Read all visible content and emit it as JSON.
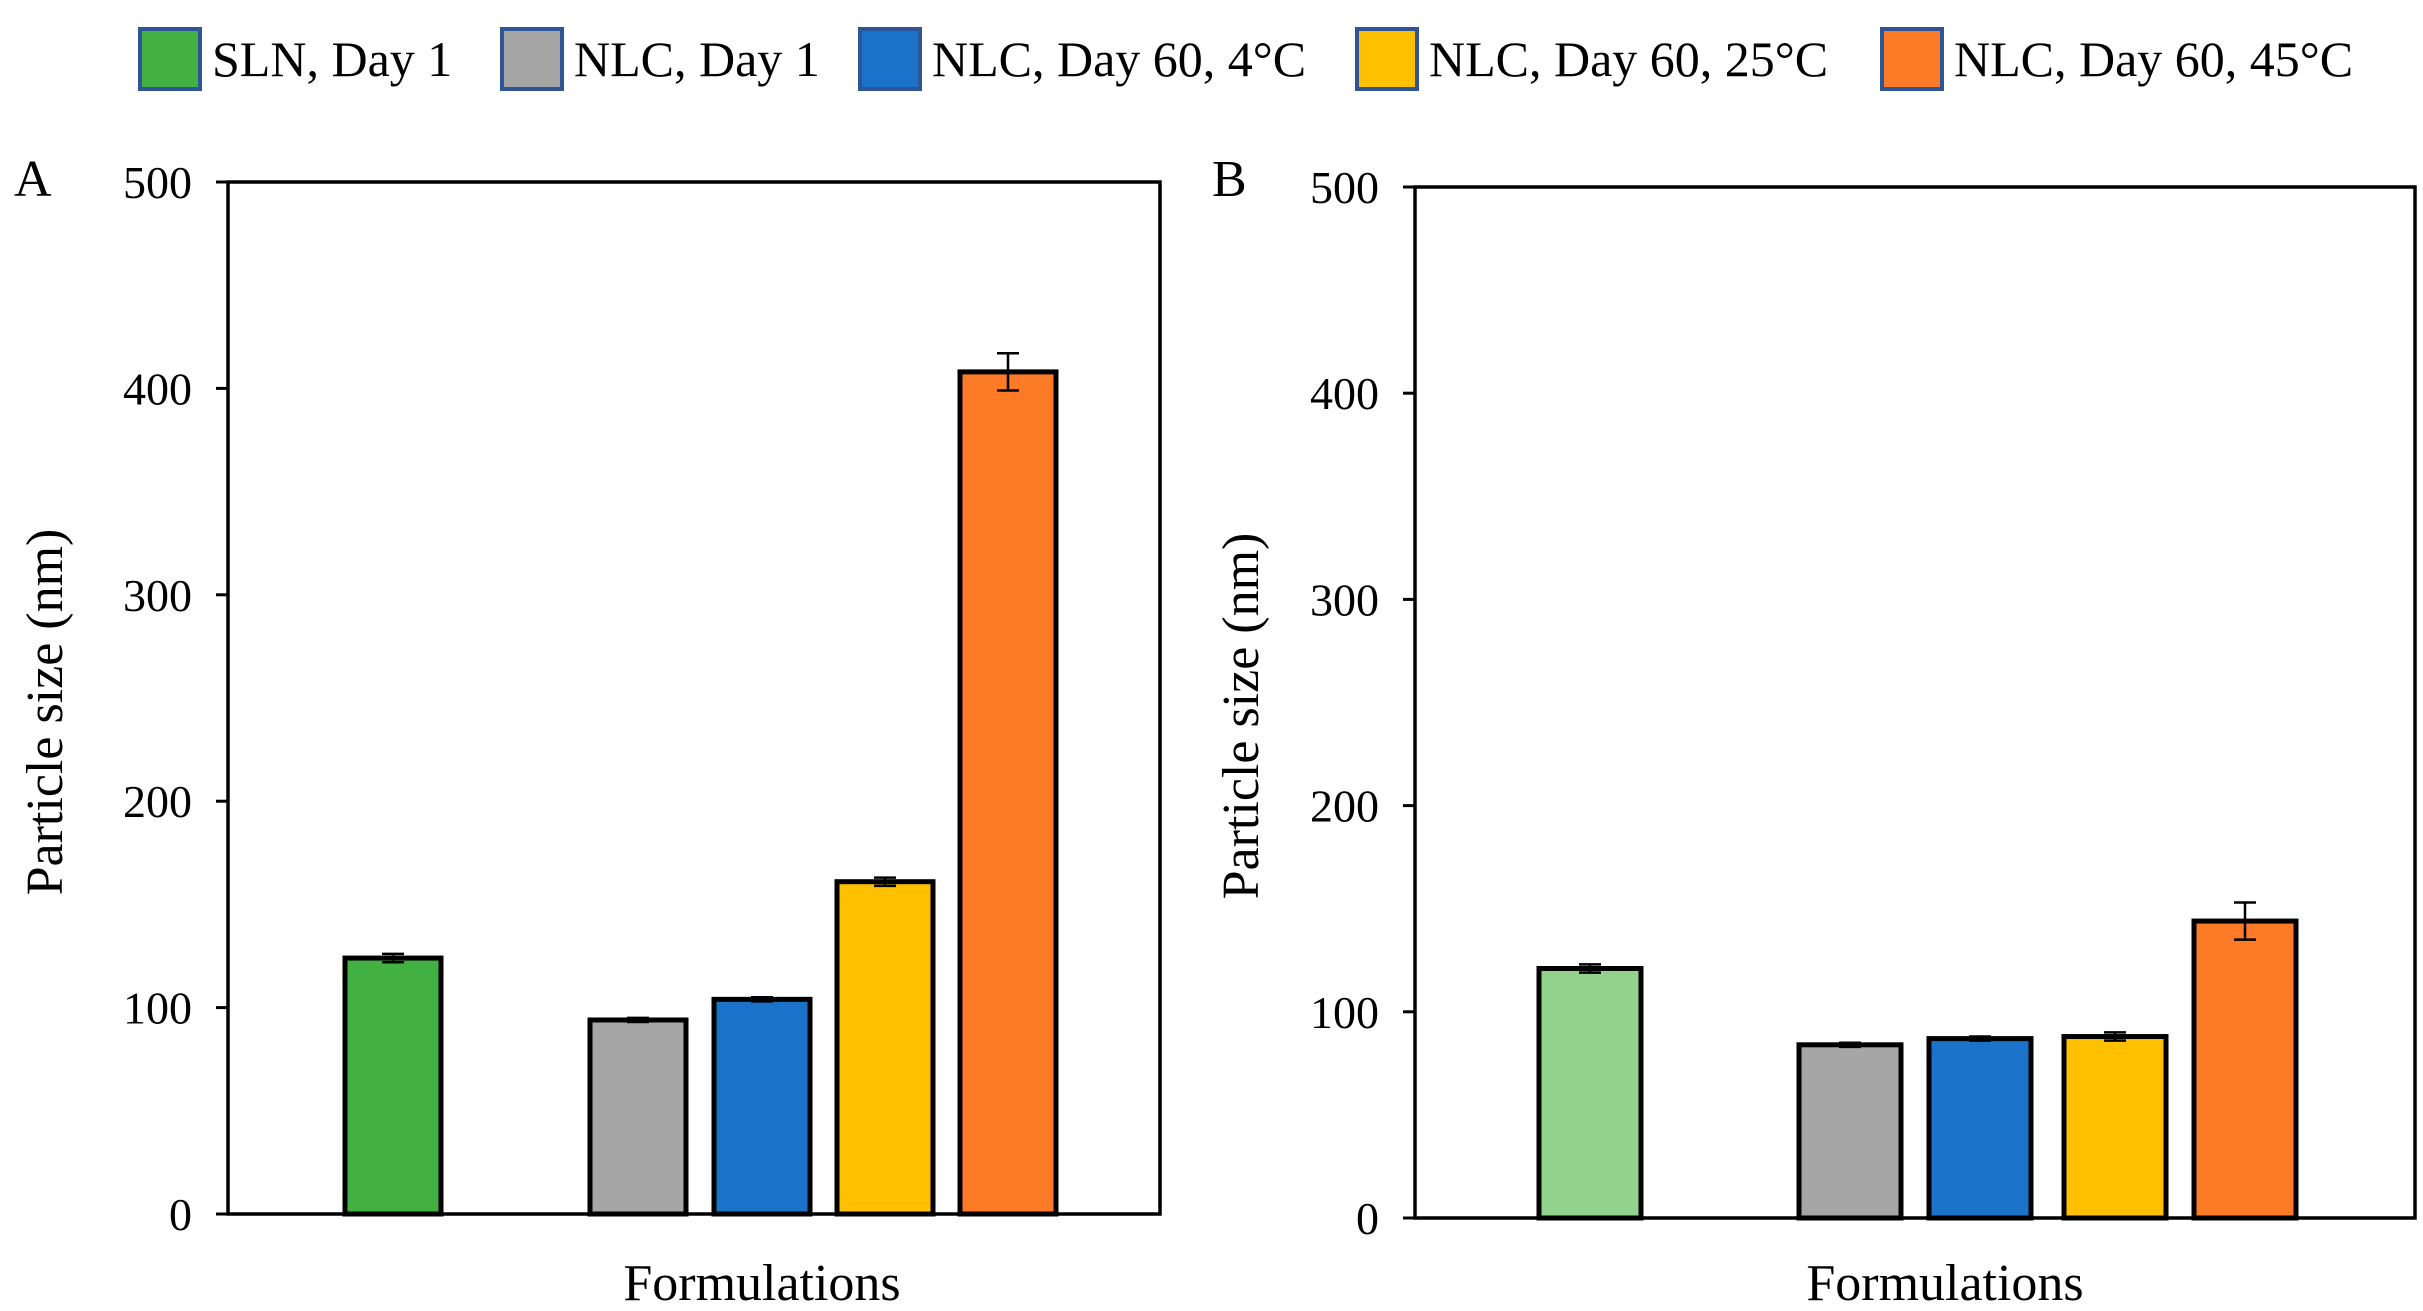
{
  "legend": [
    {
      "label": "SLN, Day 1",
      "color": "#43b043"
    },
    {
      "label": "NLC, Day 1",
      "color": "#a6a6a6"
    },
    {
      "label": "NLC, Day 60, 4°C",
      "color": "#1a73c8"
    },
    {
      "label": "NLC, Day 60, 25°C",
      "color": "#ffc000"
    },
    {
      "label": "NLC, Day 60, 45°C",
      "color": "#fd7b27"
    }
  ],
  "chart_data": [
    {
      "type": "bar",
      "panel": "A",
      "title": "",
      "xlabel": "Formulations",
      "ylabel": "Particle size (nm)",
      "ylim": [
        0,
        500
      ],
      "yticks": [
        "0",
        "100",
        "200",
        "300",
        "400",
        "500"
      ],
      "categories": [
        "SLN, Day 1",
        "NLC, Day 1",
        "NLC, Day 60, 4°C",
        "NLC, Day 60, 25°C",
        "NLC, Day 60, 45°C"
      ],
      "values": [
        124,
        94,
        104,
        161,
        408
      ],
      "errors": [
        2,
        1,
        1,
        2,
        9
      ],
      "colors": [
        "#43b043",
        "#a6a6a6",
        "#1a73c8",
        "#ffc000",
        "#fd7b27"
      ]
    },
    {
      "type": "bar",
      "panel": "B",
      "title": "",
      "xlabel": "Formulations",
      "ylabel": "Particle size (nm)",
      "ylim": [
        0,
        500
      ],
      "yticks": [
        "0",
        "100",
        "200",
        "300",
        "400",
        "500"
      ],
      "categories": [
        "SLN, Day 1",
        "NLC, Day 1",
        "NLC, Day 60, 4°C",
        "NLC, Day 60, 25°C",
        "NLC, Day 60, 45°C"
      ],
      "values": [
        121,
        84,
        87,
        88,
        144
      ],
      "errors": [
        2,
        1,
        1,
        2,
        9
      ],
      "colors": [
        "#92d28c",
        "#a6a6a6",
        "#1a73c8",
        "#ffc000",
        "#fd7b27"
      ]
    }
  ]
}
